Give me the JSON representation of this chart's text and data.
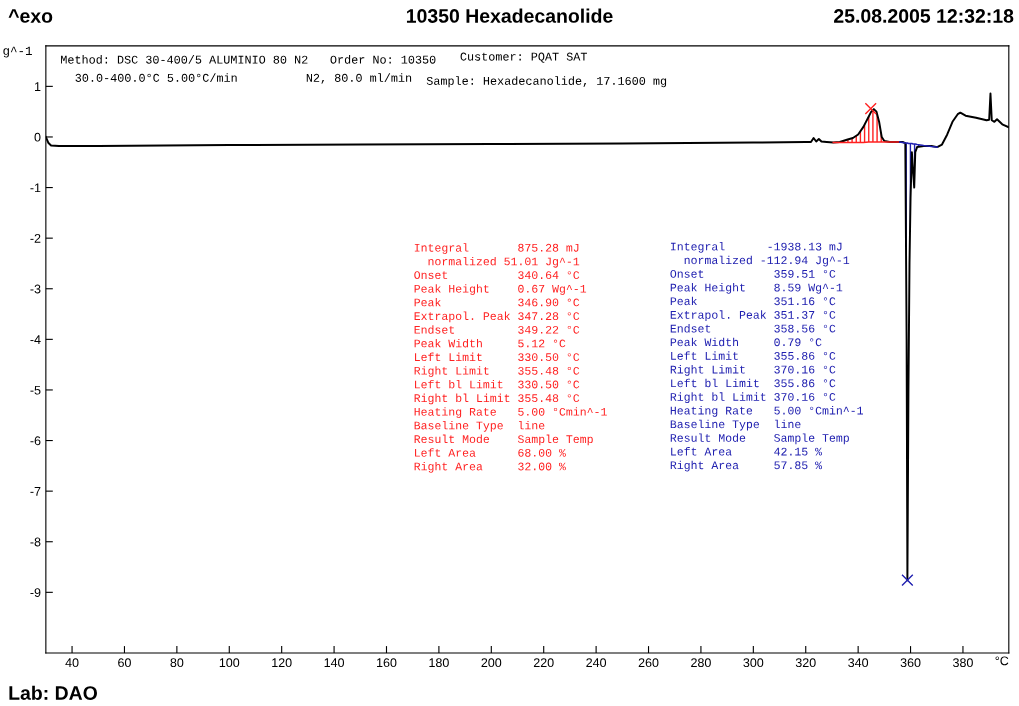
{
  "chart_data": {
    "type": "line",
    "title": "10350 Hexadecanolide",
    "xlabel": "°C",
    "ylabel": "g^-1",
    "xlim": [
      30,
      397.5
    ],
    "ylim": [
      -10.2,
      1.8
    ],
    "xticks": [
      40,
      60,
      80,
      100,
      120,
      140,
      160,
      180,
      200,
      220,
      240,
      260,
      280,
      300,
      320,
      340,
      360,
      380
    ],
    "yticks": [
      -9,
      -8,
      -7,
      -6,
      -5,
      -4,
      -3,
      -2,
      -1,
      0,
      1
    ],
    "grid": false,
    "legend": false,
    "marker": "none",
    "line_style": "solid",
    "annotations": [
      "^exo",
      "25.08.2005 12:32:18",
      "Method: DSC 30-400/5 ALUMINIO 80 N2",
      "Order No: 10350",
      "Customer: PQAT SAT",
      "30.0-400.0°C 5.00°C/min",
      "N2, 80.0 ml/min",
      "Sample: Hexadecanolide, 17.1600 mg",
      "Integral       875.28 mJ\n  normalized 51.01 Jg^-1\nOnset          340.64 °C\nPeak Height    0.67 Wg^-1\nPeak           346.90 °C\nExtrapol. Peak 347.28 °C\nEndset         349.22 °C\nPeak Width     5.12 °C\nLeft Limit     330.50 °C\nRight Limit    355.48 °C\nLeft bl Limit  330.50 °C\nRight bl Limit 355.48 °C\nHeating Rate   5.00 °Cmin^-1\nBaseline Type  line\nResult Mode    Sample Temp\nLeft Area      68.00 %\nRight Area     32.00 %",
      "Integral      -1938.13 mJ\n  normalized -112.94 Jg^-1\nOnset          359.51 °C\nPeak Height    8.59 Wg^-1\nPeak           351.16 °C\nExtrapol. Peak 351.37 °C\nEndset         358.56 °C\nPeak Width     0.79 °C\nLeft Limit     355.86 °C\nRight Limit    370.16 °C\nLeft bl Limit  355.86 °C\nRight bl Limit 370.16 °C\nHeating Rate   5.00 °Cmin^-1\nBaseline Type  line\nResult Mode    Sample Temp\nLeft Area      42.15 %\nRight Area     57.85 %",
      "Lab: DAO"
    ],
    "series": [
      {
        "color": "#000000",
        "x": [
          30,
          31,
          32,
          35,
          50,
          100,
          150,
          200,
          250,
          300,
          320,
          322,
          323,
          324,
          325,
          326,
          328,
          330.5,
          333,
          336,
          338,
          340,
          342,
          344,
          345,
          346,
          347,
          348,
          349,
          350,
          352,
          355.48,
          357,
          358,
          358.5,
          358.8,
          359.2,
          359.6,
          360,
          360.5,
          361,
          361.4,
          361.8,
          362.5,
          365,
          368,
          370.16,
          372,
          374,
          376,
          378,
          379,
          381,
          385,
          389,
          390,
          390.5,
          391,
          392,
          393,
          395,
          397.5
        ],
        "values": [
          0.0,
          -0.12,
          -0.17,
          -0.18,
          -0.18,
          -0.16,
          -0.15,
          -0.14,
          -0.13,
          -0.11,
          -0.1,
          -0.1,
          -0.02,
          -0.09,
          -0.04,
          -0.09,
          -0.1,
          -0.11,
          -0.1,
          -0.05,
          -0.02,
          0.05,
          0.2,
          0.4,
          0.5,
          0.55,
          0.5,
          0.3,
          0.0,
          -0.08,
          -0.1,
          -0.1,
          -0.1,
          -0.12,
          -4,
          -8.76,
          -5,
          -2.5,
          -1.2,
          -0.3,
          -0.7,
          -1.0,
          -0.3,
          -0.2,
          -0.18,
          -0.18,
          -0.2,
          -0.15,
          0.05,
          0.3,
          0.45,
          0.48,
          0.42,
          0.38,
          0.33,
          0.34,
          0.86,
          0.33,
          0.3,
          0.35,
          0.25,
          0.19
        ]
      },
      {
        "color": "#ff2020",
        "x": [
          330.5,
          333,
          336,
          338,
          340,
          342,
          344,
          345,
          346,
          347,
          348,
          349,
          350,
          352,
          355.48
        ],
        "values": [
          -0.11,
          -0.11,
          -0.11,
          -0.11,
          -0.11,
          -0.11,
          -0.1,
          -0.1,
          -0.1,
          -0.1,
          -0.1,
          -0.1,
          -0.1,
          -0.1,
          -0.1
        ],
        "lower": [
          -0.11,
          -0.11,
          -0.11,
          -0.11,
          -0.11,
          -0.11,
          -0.1,
          -0.1,
          -0.1,
          -0.1,
          -0.1,
          -0.1,
          -0.1,
          -0.1,
          -0.1
        ],
        "upper": [
          -0.11,
          -0.1,
          -0.05,
          -0.02,
          0.05,
          0.2,
          0.4,
          0.5,
          0.55,
          0.5,
          0.3,
          0.0,
          -0.08,
          -0.1,
          -0.1
        ]
      },
      {
        "color": "#2020b0",
        "x": [
          355.86,
          357,
          358,
          358.5,
          358.8,
          359.2,
          359.6,
          360,
          360.5,
          361,
          361.4,
          361.8,
          362.5,
          365,
          368,
          370.16
        ],
        "values": [
          -0.1,
          -0.11,
          -0.12,
          -0.12,
          -0.12,
          -0.13,
          -0.13,
          -0.13,
          -0.13,
          -0.14,
          -0.14,
          -0.14,
          -0.15,
          -0.17,
          -0.19,
          -0.2
        ],
        "lower": [
          -0.1,
          -0.1,
          -0.12,
          -4,
          -8.76,
          -5,
          -2.5,
          -1.2,
          -0.3,
          -0.7,
          -1.0,
          -0.3,
          -0.2,
          -0.18,
          -0.19,
          -0.2
        ],
        "upper": [
          -0.1,
          -0.11,
          -0.12,
          -0.12,
          -0.12,
          -0.13,
          -0.13,
          -0.13,
          -0.13,
          -0.14,
          -0.14,
          -0.14,
          -0.15,
          -0.17,
          -0.19,
          -0.2
        ]
      },
      {
        "type": "scatter",
        "color": "#ff2020",
        "marker": "cross",
        "x": [
          344.8
        ],
        "values": [
          0.56
        ]
      },
      {
        "type": "scatter",
        "color": "#2020b0",
        "marker": "cross",
        "x": [
          358.8
        ],
        "values": [
          -8.76
        ]
      }
    ]
  }
}
